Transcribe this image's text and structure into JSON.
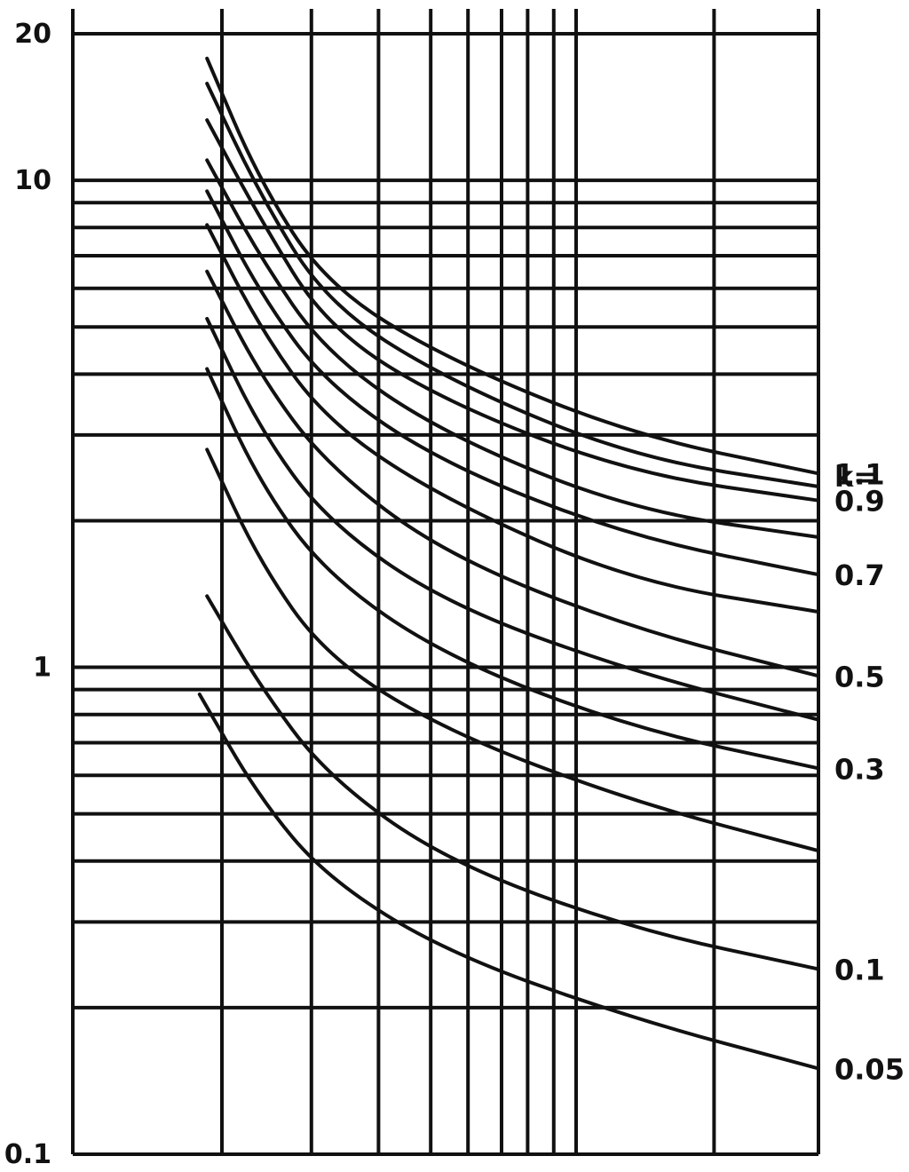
{
  "chart_data": {
    "type": "line",
    "title": "",
    "xlabel": "",
    "ylabel": "",
    "y_scale": "log",
    "ylim": [
      0.1,
      20
    ],
    "y_ticks": [
      "20",
      "10",
      "1",
      "0.1"
    ],
    "x_ticks": [],
    "grid": true,
    "legend_title": "k=",
    "legend_position": "right",
    "colors": {
      "line": "#111111",
      "grid": "#111111",
      "background": "#ffffff"
    },
    "series": [
      {
        "name": "1.1",
        "label": "1.1",
        "values": [
          [
            0.18,
            17.8
          ],
          [
            0.25,
            10.0
          ],
          [
            0.34,
            6.1
          ],
          [
            0.5,
            4.3
          ],
          [
            0.75,
            3.0
          ],
          [
            1.0,
            2.5
          ]
        ]
      },
      {
        "name": "",
        "label": "",
        "values": [
          [
            0.18,
            15.8
          ],
          [
            0.25,
            9.4
          ],
          [
            0.34,
            5.6
          ],
          [
            0.5,
            3.9
          ],
          [
            0.75,
            2.7
          ],
          [
            1.0,
            2.35
          ]
        ]
      },
      {
        "name": "0.9",
        "label": "0.9",
        "values": [
          [
            0.18,
            13.3
          ],
          [
            0.25,
            8.4
          ],
          [
            0.34,
            5.0
          ],
          [
            0.5,
            3.5
          ],
          [
            0.75,
            2.5
          ],
          [
            1.0,
            2.2
          ]
        ]
      },
      {
        "name": "",
        "label": "",
        "values": [
          [
            0.18,
            11.0
          ],
          [
            0.25,
            7.0
          ],
          [
            0.34,
            4.4
          ],
          [
            0.5,
            3.0
          ],
          [
            0.75,
            2.1
          ],
          [
            1.0,
            1.85
          ]
        ]
      },
      {
        "name": "0.7",
        "label": "0.7",
        "values": [
          [
            0.18,
            9.5
          ],
          [
            0.25,
            5.9
          ],
          [
            0.34,
            3.8
          ],
          [
            0.5,
            2.6
          ],
          [
            0.75,
            1.85
          ],
          [
            1.0,
            1.55
          ]
        ]
      },
      {
        "name": "",
        "label": "",
        "values": [
          [
            0.18,
            8.1
          ],
          [
            0.25,
            5.0
          ],
          [
            0.34,
            3.2
          ],
          [
            0.5,
            2.2
          ],
          [
            0.75,
            1.5
          ],
          [
            1.0,
            1.3
          ]
        ]
      },
      {
        "name": "0.5",
        "label": "0.5",
        "values": [
          [
            0.18,
            6.5
          ],
          [
            0.25,
            4.0
          ],
          [
            0.34,
            2.6
          ],
          [
            0.5,
            1.7
          ],
          [
            0.75,
            1.2
          ],
          [
            1.0,
            0.96
          ]
        ]
      },
      {
        "name": "",
        "label": "",
        "values": [
          [
            0.18,
            5.2
          ],
          [
            0.25,
            3.1
          ],
          [
            0.34,
            2.0
          ],
          [
            0.5,
            1.35
          ],
          [
            0.75,
            0.98
          ],
          [
            1.0,
            0.78
          ]
        ]
      },
      {
        "name": "0.3",
        "label": "0.3",
        "values": [
          [
            0.18,
            4.1
          ],
          [
            0.25,
            2.4
          ],
          [
            0.34,
            1.55
          ],
          [
            0.5,
            1.05
          ],
          [
            0.75,
            0.75
          ],
          [
            1.0,
            0.62
          ]
        ]
      },
      {
        "name": "",
        "label": "",
        "values": [
          [
            0.18,
            2.8
          ],
          [
            0.25,
            1.65
          ],
          [
            0.34,
            1.05
          ],
          [
            0.5,
            0.74
          ],
          [
            0.75,
            0.53
          ],
          [
            1.0,
            0.42
          ]
        ]
      },
      {
        "name": "0.1",
        "label": "0.1",
        "values": [
          [
            0.18,
            1.4
          ],
          [
            0.25,
            0.92
          ],
          [
            0.34,
            0.6
          ],
          [
            0.5,
            0.4
          ],
          [
            0.75,
            0.29
          ],
          [
            1.0,
            0.24
          ]
        ]
      },
      {
        "name": "0.05",
        "label": "0.05",
        "values": [
          [
            0.17,
            0.88
          ],
          [
            0.25,
            0.54
          ],
          [
            0.34,
            0.37
          ],
          [
            0.5,
            0.26
          ],
          [
            0.75,
            0.19
          ],
          [
            1.0,
            0.15
          ]
        ]
      }
    ]
  }
}
